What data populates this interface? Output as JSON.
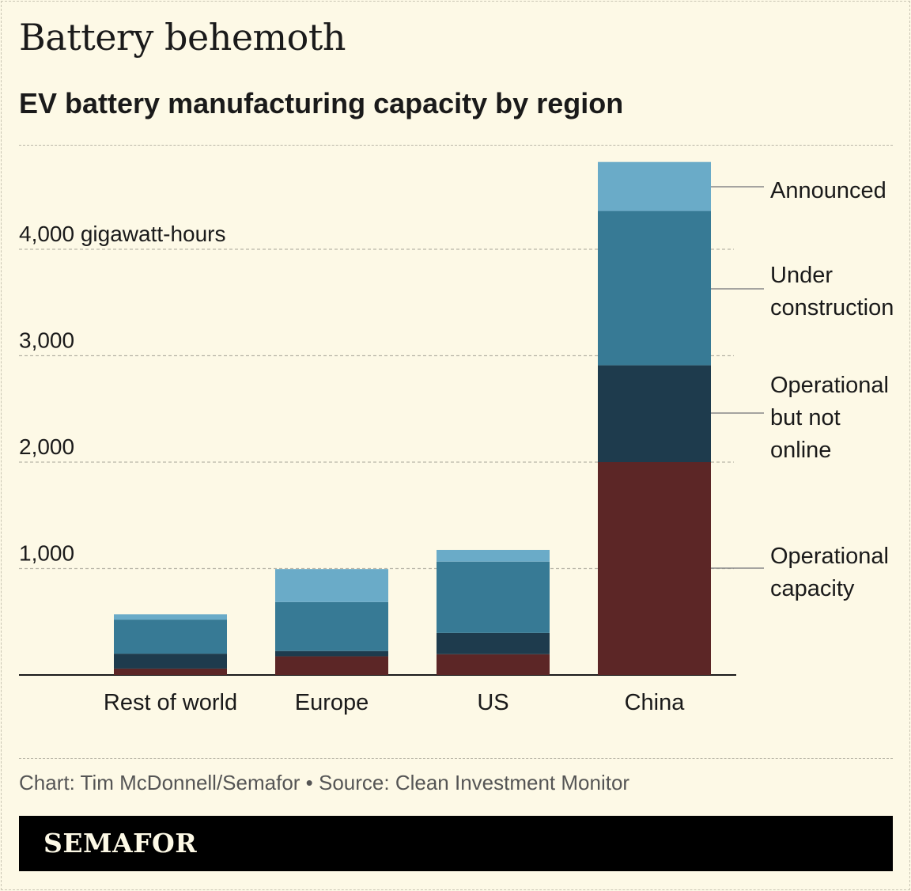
{
  "header": {
    "title": "Battery behemoth",
    "subtitle": "EV battery manufacturing capacity by region"
  },
  "footer": {
    "credit": "Chart: Tim McDonnell/Semafor • Source: Clean Investment Monitor",
    "brand": "SEMAFOR"
  },
  "colors": {
    "background": "#fdf9e6",
    "operational_capacity": "#5c2626",
    "operational_not_online": "#1e3b4d",
    "under_construction": "#377a95",
    "announced": "#6aabc8"
  },
  "chart_data": {
    "type": "bar",
    "stacked": true,
    "categories": [
      "Rest of world",
      "Europe",
      "US",
      "China"
    ],
    "series": [
      {
        "name": "Operational capacity",
        "values": [
          60,
          175,
          195,
          2000
        ]
      },
      {
        "name": "Operational but not online",
        "values": [
          140,
          50,
          200,
          910
        ]
      },
      {
        "name": "Under construction",
        "values": [
          320,
          460,
          670,
          1450
        ]
      },
      {
        "name": "Announced",
        "values": [
          50,
          310,
          110,
          460
        ]
      }
    ],
    "ylim": [
      0,
      4900
    ],
    "yticks": [
      1000,
      2000,
      3000,
      4000
    ],
    "ytick_labels": [
      "1,000",
      "2,000",
      "3,000",
      "4,000 gigawatt-hours"
    ],
    "legend_position": "right, labeling China segments",
    "grid": true
  }
}
